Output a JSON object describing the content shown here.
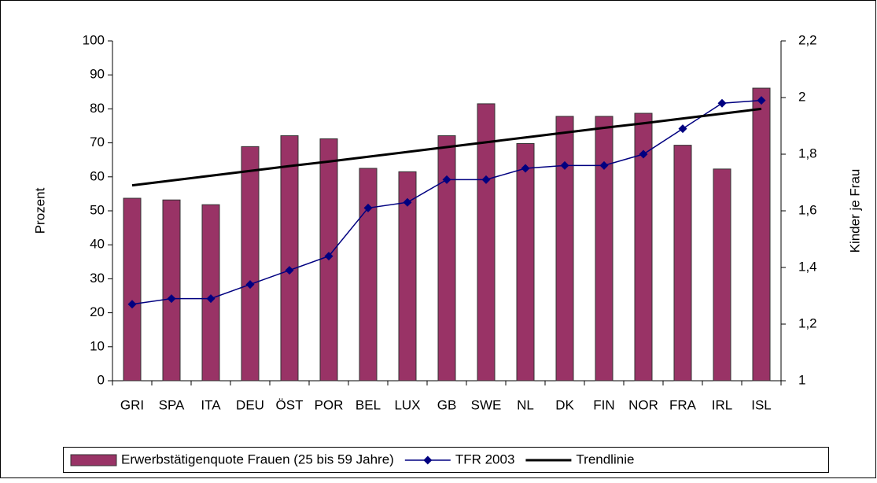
{
  "chart_data": {
    "type": "bar",
    "categories": [
      "GRI",
      "SPA",
      "ITA",
      "DEU",
      "ÖST",
      "POR",
      "BEL",
      "LUX",
      "GB",
      "SWE",
      "NL",
      "DK",
      "FIN",
      "NOR",
      "FRA",
      "IRL",
      "ISL"
    ],
    "ylabel": "Prozent",
    "y2label": "Kinder je Frau",
    "ylim": [
      0,
      100
    ],
    "yticks": [
      0,
      10,
      20,
      30,
      40,
      50,
      60,
      70,
      80,
      90,
      100
    ],
    "y2lim": [
      1,
      2.2
    ],
    "y2ticks": [
      1,
      {
        "value": 1.2,
        "label": "1,2"
      },
      {
        "value": 1.4,
        "label": "1,4"
      },
      {
        "value": 1.6,
        "label": "1,6"
      },
      {
        "value": 1.8,
        "label": "1,8"
      },
      2,
      {
        "value": 2.2,
        "label": "2,2"
      }
    ],
    "grid": false,
    "legend": "bottom",
    "series": [
      {
        "name": "Erwerbstätigenquote Frauen (25 bis 59 Jahre)",
        "type": "bar",
        "color": "#993366",
        "values": [
          53.7,
          53.2,
          51.8,
          68.9,
          72.1,
          71.2,
          62.5,
          61.5,
          72.1,
          81.5,
          69.8,
          77.8,
          77.8,
          78.7,
          69.3,
          62.3,
          86.1
        ]
      },
      {
        "name": "TFR 2003",
        "type": "line",
        "axis": "y2",
        "color": "#000080",
        "values": [
          1.27,
          1.29,
          1.29,
          1.34,
          1.39,
          1.44,
          1.61,
          1.63,
          1.71,
          1.71,
          1.75,
          1.76,
          1.76,
          1.8,
          1.89,
          1.98,
          1.99
        ]
      },
      {
        "name": "Trendlinie",
        "type": "trend",
        "axis": "y2",
        "color": "#000000",
        "values": [
          1.69,
          1.707,
          1.724,
          1.741,
          1.758,
          1.774,
          1.791,
          1.808,
          1.825,
          1.842,
          1.859,
          1.876,
          1.893,
          1.909,
          1.926,
          1.943,
          1.96
        ]
      }
    ]
  }
}
